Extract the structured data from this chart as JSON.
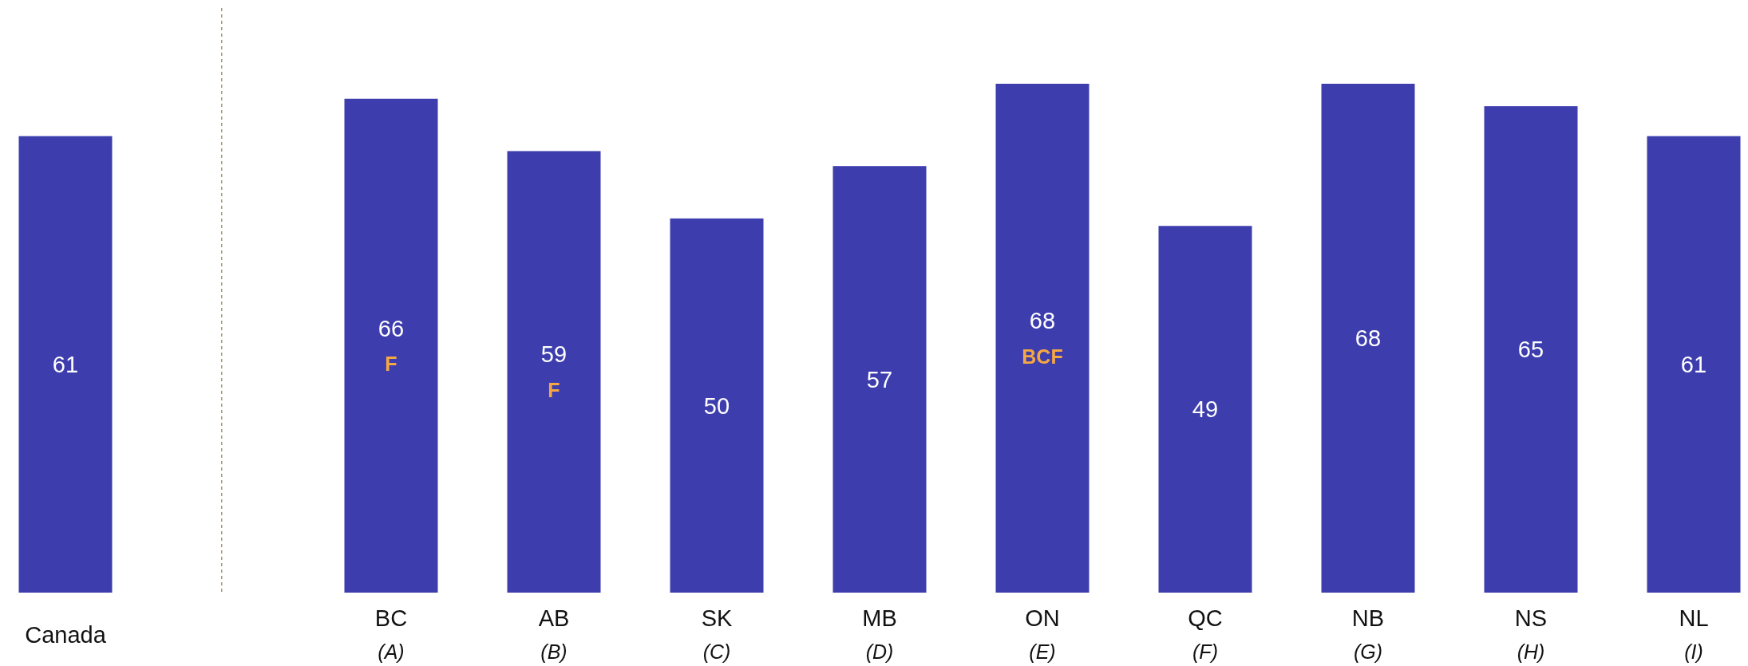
{
  "chart_data": {
    "type": "bar",
    "categories": [
      "Canada",
      null,
      "BC (A)",
      "AB (B)",
      "SK (C)",
      "MB (D)",
      "ON (E)",
      "QC (F)",
      "NB (G)",
      "NS (H)",
      "NL (I)"
    ],
    "values": [
      61,
      null,
      66,
      59,
      50,
      57,
      68,
      49,
      68,
      65,
      61
    ],
    "color": "#3d3dae",
    "value_labels": [
      "61",
      null,
      "66\nF",
      "59\nF",
      "50",
      "57",
      "68\nBCF",
      "49",
      "68",
      "65",
      "61"
    ]
  }
}
